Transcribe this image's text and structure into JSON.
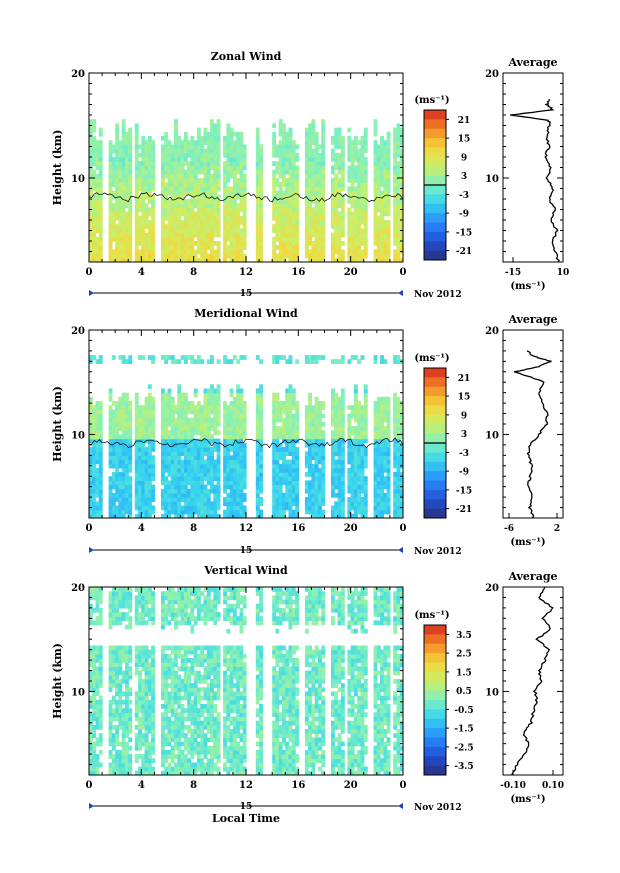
{
  "chart_data": [
    {
      "type": "heatmap",
      "title": "Zonal Wind",
      "ylabel": "Height (km)",
      "xlabel": "",
      "x_ticks": [
        "0",
        "4",
        "8",
        "12",
        "16",
        "20",
        "0"
      ],
      "y_ticks": [
        "20",
        "10"
      ],
      "ylim": [
        2,
        20
      ],
      "date_day": "15",
      "date_month": "Nov 2012",
      "colorbar": {
        "unit": "(ms⁻¹)",
        "ticks": [
          "21",
          "15",
          "9",
          "3",
          "-3",
          "-9",
          "-15",
          "-21"
        ],
        "range": [
          -24,
          24
        ]
      },
      "data_gaps_hours": [
        [
          1.1,
          1.6
        ],
        [
          3.2,
          3.5
        ],
        [
          4.9,
          5.6
        ],
        [
          10.0,
          10.3
        ],
        [
          12.1,
          12.8
        ],
        [
          13.3,
          13.9
        ],
        [
          15.9,
          16.5
        ],
        [
          17.9,
          18.5
        ],
        [
          19.5,
          19.7
        ],
        [
          21.2,
          21.8
        ],
        [
          22.9,
          23.2
        ]
      ],
      "profile": {
        "title": "Average",
        "xlabel": "(ms⁻¹)",
        "x_ticks": [
          "-15",
          "10"
        ],
        "xlim": [
          -20,
          10
        ],
        "y_ticks": [
          "20",
          "10"
        ],
        "height_km": [
          2,
          3,
          4,
          5,
          6,
          7,
          8,
          9,
          10,
          11,
          12,
          13,
          14,
          15,
          15.5,
          16,
          16.5,
          17,
          17.5
        ],
        "values": [
          8,
          6,
          5,
          7,
          4,
          6,
          3,
          5,
          2,
          4,
          1,
          3,
          2,
          3,
          3,
          -16,
          5,
          2,
          3
        ]
      }
    },
    {
      "type": "heatmap",
      "title": "Meridional Wind",
      "ylabel": "Height (km)",
      "xlabel": "",
      "x_ticks": [
        "0",
        "4",
        "8",
        "12",
        "16",
        "20",
        "0"
      ],
      "y_ticks": [
        "20",
        "10"
      ],
      "ylim": [
        2,
        20
      ],
      "date_day": "15",
      "date_month": "Nov 2012",
      "colorbar": {
        "unit": "(ms⁻¹)",
        "ticks": [
          "21",
          "15",
          "9",
          "3",
          "-3",
          "-9",
          "-15",
          "-21"
        ],
        "range": [
          -24,
          24
        ]
      },
      "data_gaps_hours": [
        [
          1.1,
          1.6
        ],
        [
          3.2,
          3.5
        ],
        [
          4.9,
          5.6
        ],
        [
          10.0,
          10.3
        ],
        [
          12.1,
          12.8
        ],
        [
          13.3,
          13.9
        ],
        [
          15.9,
          16.5
        ],
        [
          17.9,
          18.5
        ],
        [
          19.5,
          19.7
        ],
        [
          21.2,
          21.8
        ],
        [
          22.9,
          23.2
        ]
      ],
      "profile": {
        "title": "Average",
        "xlabel": "(ms⁻¹)",
        "x_ticks": [
          "-6",
          "2"
        ],
        "xlim": [
          -7,
          3
        ],
        "y_ticks": [
          "20",
          "10"
        ],
        "height_km": [
          2,
          3,
          4,
          5,
          6,
          7,
          8,
          9,
          10,
          11,
          12,
          13,
          14,
          15,
          16,
          16.5,
          17,
          17.5,
          18
        ],
        "values": [
          -2,
          -2.5,
          -2,
          -2.8,
          -2.5,
          -2.2,
          -2.8,
          -2.5,
          -1,
          0.2,
          0.5,
          -0.5,
          -1,
          0,
          -5,
          -1,
          1,
          -2,
          -3
        ]
      }
    },
    {
      "type": "heatmap",
      "title": "Vertical Wind",
      "ylabel": "Height (km)",
      "xlabel": "Local Time",
      "x_ticks": [
        "0",
        "4",
        "8",
        "12",
        "16",
        "20",
        "0"
      ],
      "y_ticks": [
        "20",
        "10"
      ],
      "ylim": [
        2,
        20
      ],
      "date_day": "15",
      "date_month": "Nov 2012",
      "colorbar": {
        "unit": "(ms⁻¹)",
        "ticks": [
          "3.5",
          "2.5",
          "1.5",
          "0.5",
          "-0.5",
          "-1.5",
          "-2.5",
          "-3.5"
        ],
        "range": [
          -4,
          4
        ]
      },
      "data_gaps_hours": [
        [
          1.1,
          1.6
        ],
        [
          3.2,
          3.5
        ],
        [
          4.9,
          5.6
        ],
        [
          10.0,
          10.3
        ],
        [
          12.1,
          12.8
        ],
        [
          13.3,
          13.9
        ],
        [
          15.9,
          16.5
        ],
        [
          17.9,
          18.5
        ],
        [
          19.5,
          19.7
        ],
        [
          21.2,
          21.8
        ],
        [
          22.9,
          23.2
        ]
      ],
      "profile": {
        "title": "Average",
        "xlabel": "(ms⁻¹)",
        "x_ticks": [
          "-0.10",
          "0.10"
        ],
        "xlim": [
          -0.15,
          0.15
        ],
        "y_ticks": [
          "20",
          "10"
        ],
        "height_km": [
          2,
          3,
          4,
          5,
          6,
          7,
          8,
          9,
          10,
          11,
          12,
          13,
          14,
          15,
          16,
          17,
          18,
          19,
          20
        ],
        "values": [
          -0.1,
          -0.08,
          -0.04,
          -0.02,
          -0.05,
          -0.01,
          0.0,
          0.02,
          0.01,
          0.04,
          0.03,
          0.06,
          0.08,
          0.02,
          0.09,
          0.05,
          0.1,
          0.03,
          0.06
        ]
      }
    }
  ]
}
